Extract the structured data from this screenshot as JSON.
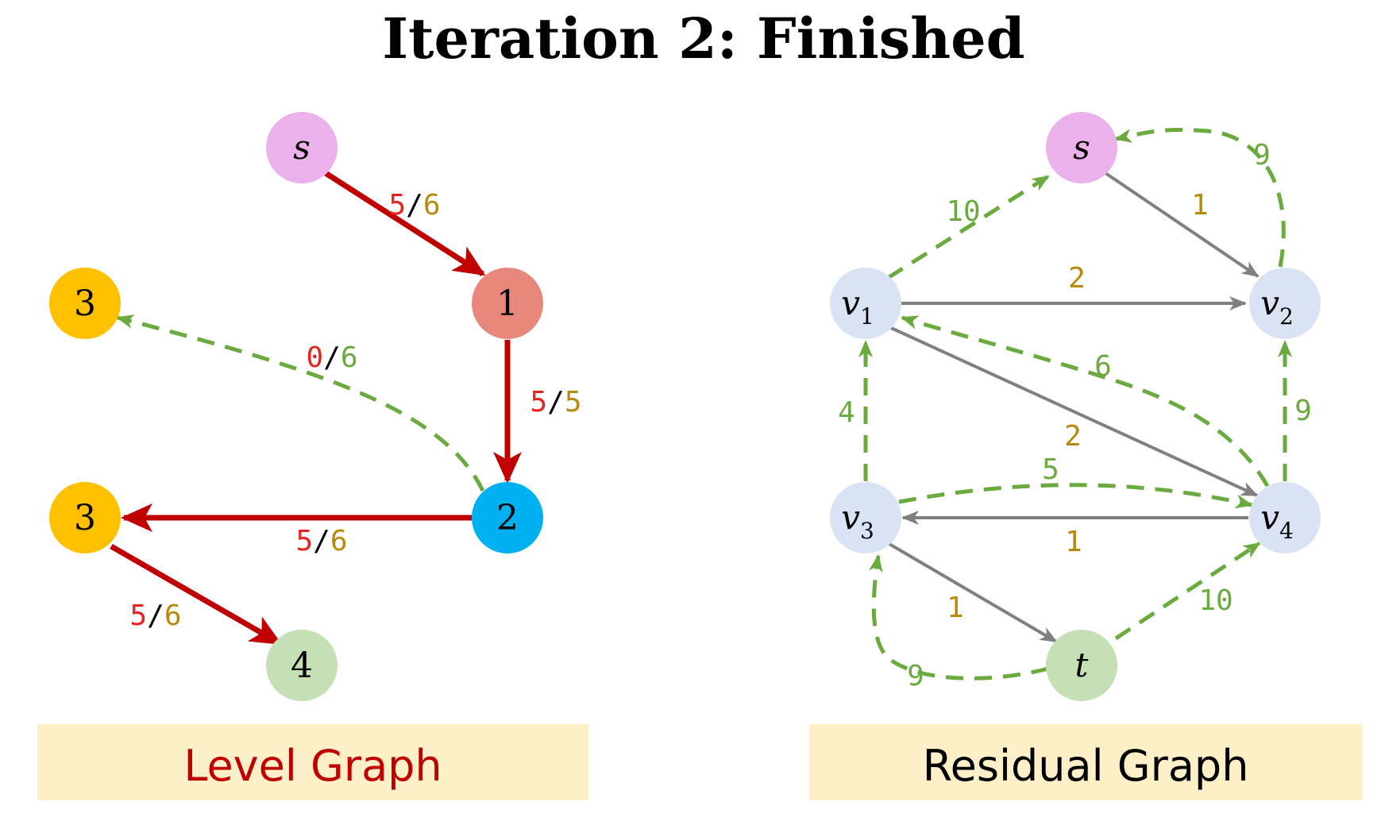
{
  "title": "Iteration 2: Finished",
  "colors": {
    "flow": "#e8231f",
    "capacity": "#b8890c",
    "residual_capacity": "#6aaa3e",
    "level_edge": "#c00000",
    "residual_edge": "#808080",
    "back_edge": "#6aaa3e",
    "caption_bg": "#fdf0c8",
    "level_caption_text": "#c00000",
    "residual_caption_text": "#000000"
  },
  "level_graph": {
    "caption": "Level Graph",
    "nodes": [
      {
        "id": "s",
        "label": "s",
        "italic": true,
        "color": "#ebb1ea"
      },
      {
        "id": "n1",
        "label": "1",
        "color": "#e8887c"
      },
      {
        "id": "n2",
        "label": "2",
        "color": "#00b0f0"
      },
      {
        "id": "n3a",
        "label": "3",
        "color": "#ffc000"
      },
      {
        "id": "n3b",
        "label": "3",
        "color": "#ffc000"
      },
      {
        "id": "n4",
        "label": "4",
        "color": "#c5e0b4"
      }
    ],
    "edges": [
      {
        "from": "s",
        "to": "n1",
        "flow": "5",
        "capacity": "6",
        "style": "solid"
      },
      {
        "from": "n1",
        "to": "n2",
        "flow": "5",
        "capacity": "5",
        "style": "solid"
      },
      {
        "from": "n2",
        "to": "n3b",
        "flow": "5",
        "capacity": "6",
        "style": "solid"
      },
      {
        "from": "n3b",
        "to": "n4",
        "flow": "5",
        "capacity": "6",
        "style": "solid"
      },
      {
        "from": "n2",
        "to": "n3a",
        "flow": "0",
        "capacity": "6",
        "style": "dashed"
      }
    ]
  },
  "residual_graph": {
    "caption": "Residual Graph",
    "nodes": [
      {
        "id": "s",
        "label": "s",
        "sub": "",
        "color": "#ebb1ea"
      },
      {
        "id": "v1",
        "label": "v",
        "sub": "1",
        "color": "#dae3f3"
      },
      {
        "id": "v2",
        "label": "v",
        "sub": "2",
        "color": "#dae3f3"
      },
      {
        "id": "v3",
        "label": "v",
        "sub": "3",
        "color": "#dae3f3"
      },
      {
        "id": "v4",
        "label": "v",
        "sub": "4",
        "color": "#dae3f3"
      },
      {
        "id": "t",
        "label": "t",
        "sub": "",
        "color": "#c5e0b4"
      }
    ],
    "forward_edges": [
      {
        "from": "s",
        "to": "v2",
        "label": "1"
      },
      {
        "from": "v1",
        "to": "v2",
        "label": "2"
      },
      {
        "from": "v1",
        "to": "v4",
        "label": "2"
      },
      {
        "from": "v4",
        "to": "v3",
        "label": "1"
      },
      {
        "from": "v3",
        "to": "t",
        "label": "1"
      }
    ],
    "back_edges": [
      {
        "from": "v1",
        "to": "s",
        "label": "10"
      },
      {
        "from": "v2",
        "to": "s",
        "label": "9"
      },
      {
        "from": "v4",
        "to": "v1",
        "label": "6"
      },
      {
        "from": "v3",
        "to": "v1",
        "label": "4"
      },
      {
        "from": "v4",
        "to": "v2",
        "label": "9"
      },
      {
        "from": "v3",
        "to": "v4",
        "label": "5"
      },
      {
        "from": "t",
        "to": "v4",
        "label": "10"
      },
      {
        "from": "t",
        "to": "v3",
        "label": "9"
      }
    ]
  }
}
